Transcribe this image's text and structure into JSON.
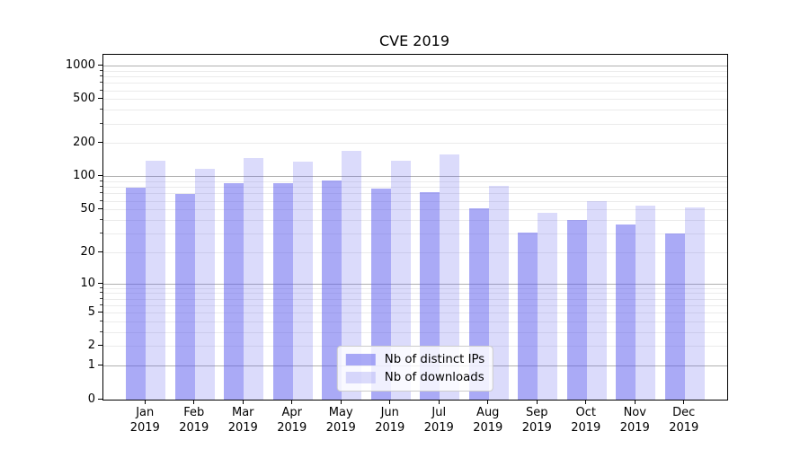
{
  "chart_data": {
    "type": "bar",
    "title": "CVE 2019",
    "categories": [
      "Jan",
      "Feb",
      "Mar",
      "Apr",
      "May",
      "Jun",
      "Jul",
      "Aug",
      "Sep",
      "Oct",
      "Nov",
      "Dec"
    ],
    "category_year": "2019",
    "series": [
      {
        "name": "Nb of distinct IPs",
        "color": "rgba(92,92,238,0.52)",
        "values": [
          80,
          70,
          88,
          88,
          93,
          79,
          73,
          52,
          31,
          40,
          37,
          30
        ]
      },
      {
        "name": "Nb of downloads",
        "color": "rgba(92,92,238,0.22)",
        "values": [
          140,
          118,
          148,
          137,
          172,
          139,
          160,
          83,
          47,
          60,
          55,
          53
        ]
      }
    ],
    "xlabel": "",
    "ylabel": "",
    "yscale": "log1p",
    "ylim": [
      0,
      1267
    ],
    "yticks_labeled": [
      0,
      1,
      2,
      5,
      10,
      20,
      50,
      100,
      200,
      500,
      1000
    ],
    "yticks_major_grid": [
      1,
      10,
      100,
      1000
    ],
    "yticks_minor_grid": [
      2,
      3,
      4,
      5,
      6,
      7,
      8,
      9,
      20,
      30,
      40,
      50,
      60,
      70,
      80,
      90,
      200,
      300,
      400,
      500,
      600,
      700,
      800,
      900
    ],
    "grid": true,
    "legend_position": "lower center",
    "colors": {
      "major_grid": "#b0b0b0",
      "minor_grid": "#ebebeb",
      "spine": "#000000",
      "bar_dark": "rgba(92,92,238,0.52)",
      "bar_light": "rgba(92,92,238,0.22)"
    }
  }
}
